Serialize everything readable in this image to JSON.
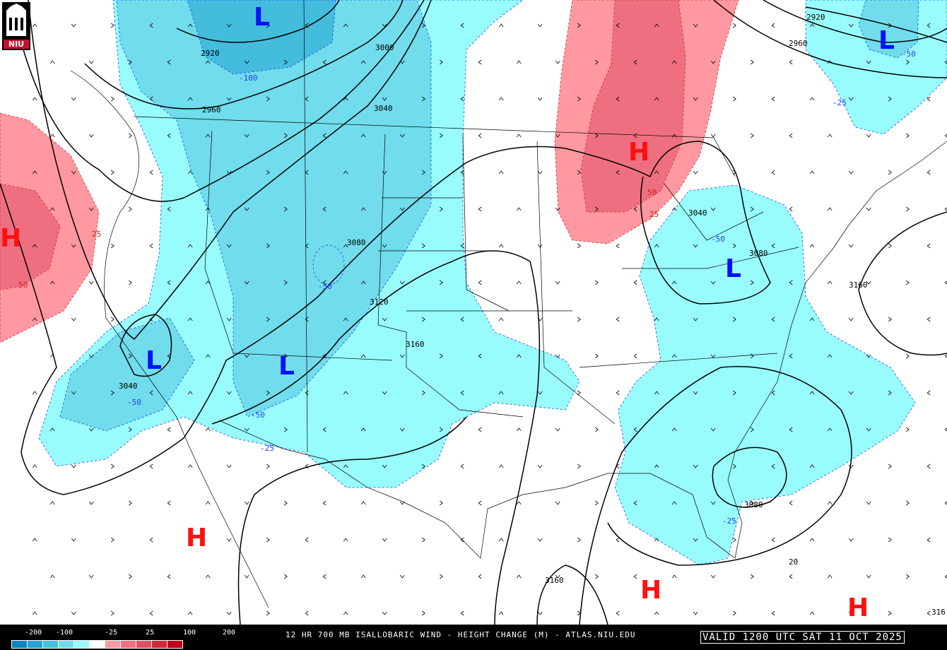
{
  "title": "12 HR 700 MB ISALLOBARIC WIND - HEIGHT CHANGE (M) - ATLAS.NIU.EDU",
  "valid": "VALID 1200 UTC SAT 11 OCT 2025",
  "logo": "NIU",
  "colorbar": {
    "labels": [
      "-200",
      "-100",
      "-25",
      "25",
      "100",
      "200"
    ],
    "colors": [
      "#0a84c0",
      "#25a4d4",
      "#46c2e0",
      "#72dcef",
      "#98fcfc",
      "#ffffff",
      "#ffffff",
      "#ff9aa2",
      "#f07182",
      "#e05064",
      "#d2283c",
      "#c00018"
    ]
  },
  "colors": {
    "cyan_light": "#98fcfc",
    "cyan_mid": "#70dcec",
    "cyan_dark": "#44bcdc",
    "pink_light": "#ff98a0",
    "pink_mid": "#ee7080"
  },
  "height_contour_labels": [
    "2920",
    "2960",
    "3000",
    "3040",
    "3080",
    "3120",
    "3160",
    "3040",
    "3040",
    "3080",
    "3160",
    "3080",
    "3160",
    "2920",
    "2960",
    "316"
  ],
  "change_labels": [
    "-100",
    "-50",
    "-50",
    "-50",
    "-25",
    "-25",
    "-50",
    "25",
    "50",
    "50",
    "25",
    "-50",
    "-25",
    "20"
  ],
  "highs": [
    "H",
    "H",
    "H",
    "H",
    "H"
  ],
  "lows": [
    "L",
    "L",
    "L",
    "L",
    "L"
  ]
}
